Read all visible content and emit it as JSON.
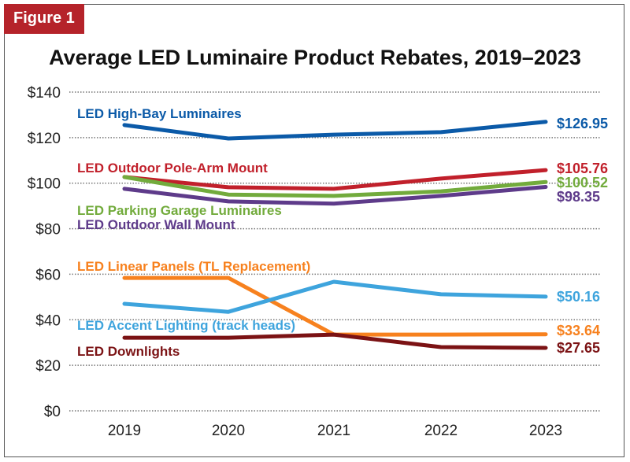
{
  "figure_tag": "Figure 1",
  "chart_data": {
    "type": "line",
    "title": "Average LED Luminaire Product Rebates, 2019–2023",
    "xlabel": "",
    "ylabel": "",
    "x": [
      "2019",
      "2020",
      "2021",
      "2022",
      "2023"
    ],
    "ylim": [
      0,
      140
    ],
    "yticks": [
      "$0",
      "$20",
      "$40",
      "$60",
      "$80",
      "$100",
      "$120",
      "$140"
    ],
    "ytick_values": [
      0,
      20,
      40,
      60,
      80,
      100,
      120,
      140
    ],
    "grid": true,
    "series": [
      {
        "name": "LED High-Bay Luminaires",
        "color": "#0b5aa8",
        "values": [
          125.5,
          119.6,
          121.3,
          122.4,
          126.95
        ],
        "end_label": "$126.95"
      },
      {
        "name": "LED Outdoor Pole-Arm Mount",
        "color": "#c1202b",
        "values": [
          102.7,
          98.2,
          97.5,
          102.0,
          105.76
        ],
        "end_label": "$105.76"
      },
      {
        "name": "LED Parking Garage Luminaires",
        "color": "#72ab3c",
        "values": [
          102.7,
          95.0,
          94.4,
          96.4,
          100.52
        ],
        "end_label": "$100.52"
      },
      {
        "name": "LED Outdoor Wall Mount",
        "color": "#5e3b8a",
        "values": [
          97.5,
          92.0,
          91.0,
          94.4,
          98.35
        ],
        "end_label": "$98.35"
      },
      {
        "name": "LED Linear Panels (TL Replacement)",
        "color": "#f7811e",
        "values": [
          58.4,
          58.4,
          33.5,
          33.5,
          33.64
        ],
        "end_label": "$33.64"
      },
      {
        "name": "LED Accent Lighting (track heads)",
        "color": "#3ea4dd",
        "values": [
          47.0,
          43.5,
          56.7,
          51.2,
          50.16
        ],
        "end_label": "$50.16"
      },
      {
        "name": "LED Downlights",
        "color": "#7b1214",
        "values": [
          32.1,
          32.1,
          33.5,
          28.0,
          27.65
        ],
        "end_label": "$27.65"
      }
    ]
  }
}
